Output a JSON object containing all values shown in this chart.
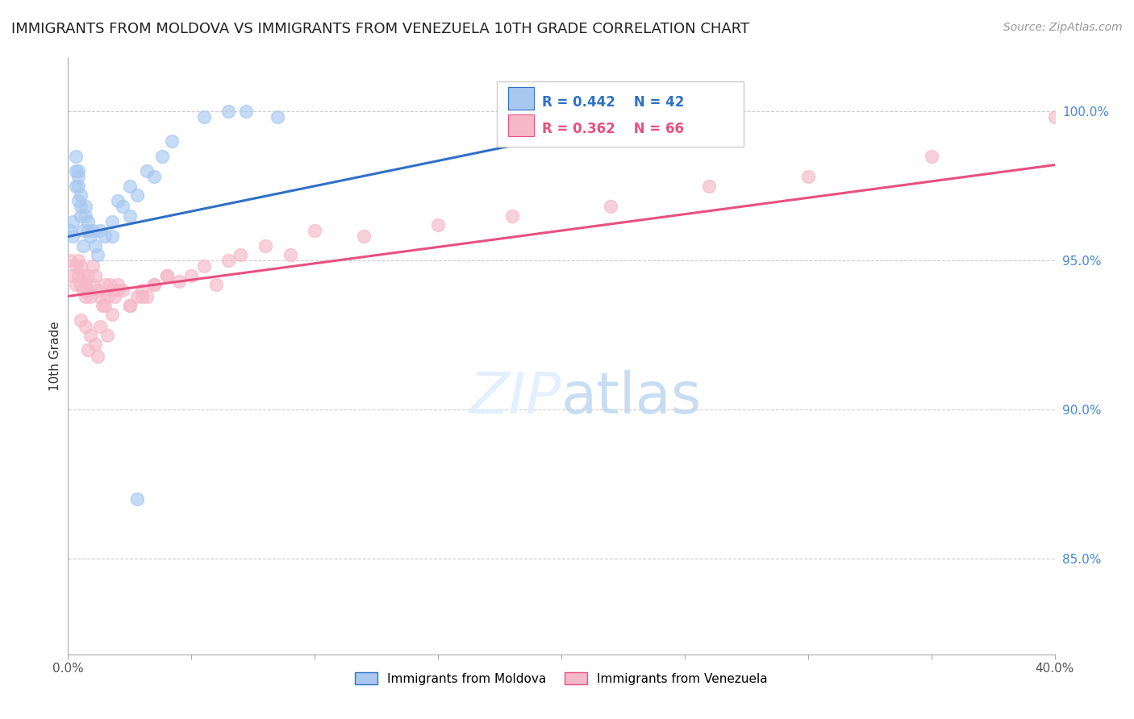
{
  "title": "IMMIGRANTS FROM MOLDOVA VS IMMIGRANTS FROM VENEZUELA 10TH GRADE CORRELATION CHART",
  "source": "Source: ZipAtlas.com",
  "ylabel": "10th Grade",
  "moldova_R": 0.442,
  "moldova_N": 42,
  "venezuela_R": 0.362,
  "venezuela_N": 66,
  "moldova_color": "#a8c8f0",
  "venezuela_color": "#f5b8c8",
  "moldova_edge_color": "#a8c8f0",
  "venezuela_edge_color": "#f5b8c8",
  "moldova_line_color": "#3070c8",
  "venezuela_line_color": "#e85080",
  "background_color": "#ffffff",
  "xlim": [
    0.0,
    0.4
  ],
  "ylim": [
    0.818,
    1.018
  ],
  "right_ytick_positions": [
    1.0,
    0.95,
    0.9,
    0.85
  ],
  "right_ytick_labels": [
    "100.0%",
    "95.0%",
    "90.0%",
    "85.0%"
  ],
  "moldova_x": [
    0.001,
    0.002,
    0.002,
    0.003,
    0.003,
    0.003,
    0.004,
    0.004,
    0.004,
    0.004,
    0.005,
    0.005,
    0.005,
    0.006,
    0.006,
    0.007,
    0.007,
    0.008,
    0.008,
    0.009,
    0.01,
    0.011,
    0.012,
    0.013,
    0.015,
    0.018,
    0.02,
    0.022,
    0.025,
    0.028,
    0.032,
    0.038,
    0.042,
    0.055,
    0.065,
    0.072,
    0.085,
    0.025,
    0.035,
    0.018,
    0.028,
    0.26
  ],
  "moldova_y": [
    0.96,
    0.958,
    0.963,
    0.975,
    0.98,
    0.985,
    0.97,
    0.975,
    0.978,
    0.98,
    0.968,
    0.972,
    0.965,
    0.96,
    0.955,
    0.968,
    0.965,
    0.96,
    0.963,
    0.958,
    0.96,
    0.955,
    0.952,
    0.96,
    0.958,
    0.963,
    0.97,
    0.968,
    0.975,
    0.972,
    0.98,
    0.985,
    0.99,
    0.998,
    1.0,
    1.0,
    0.998,
    0.965,
    0.978,
    0.958,
    0.87,
    1.0
  ],
  "venezuela_x": [
    0.001,
    0.002,
    0.003,
    0.003,
    0.004,
    0.004,
    0.005,
    0.005,
    0.006,
    0.006,
    0.007,
    0.007,
    0.008,
    0.008,
    0.009,
    0.01,
    0.01,
    0.011,
    0.012,
    0.013,
    0.014,
    0.015,
    0.016,
    0.017,
    0.018,
    0.019,
    0.02,
    0.022,
    0.025,
    0.028,
    0.03,
    0.032,
    0.035,
    0.04,
    0.045,
    0.05,
    0.055,
    0.06,
    0.065,
    0.07,
    0.08,
    0.09,
    0.1,
    0.12,
    0.15,
    0.18,
    0.22,
    0.26,
    0.3,
    0.35,
    0.4,
    0.005,
    0.007,
    0.009,
    0.011,
    0.013,
    0.015,
    0.018,
    0.02,
    0.025,
    0.03,
    0.035,
    0.04,
    0.008,
    0.012,
    0.016
  ],
  "venezuela_y": [
    0.95,
    0.945,
    0.948,
    0.942,
    0.945,
    0.95,
    0.948,
    0.942,
    0.945,
    0.94,
    0.938,
    0.942,
    0.94,
    0.945,
    0.938,
    0.942,
    0.948,
    0.945,
    0.94,
    0.938,
    0.935,
    0.942,
    0.938,
    0.942,
    0.94,
    0.938,
    0.942,
    0.94,
    0.935,
    0.938,
    0.94,
    0.938,
    0.942,
    0.945,
    0.943,
    0.945,
    0.948,
    0.942,
    0.95,
    0.952,
    0.955,
    0.952,
    0.96,
    0.958,
    0.962,
    0.965,
    0.968,
    0.975,
    0.978,
    0.985,
    0.998,
    0.93,
    0.928,
    0.925,
    0.922,
    0.928,
    0.935,
    0.932,
    0.94,
    0.935,
    0.938,
    0.942,
    0.945,
    0.92,
    0.918,
    0.925
  ],
  "mol_line_x0": 0.0,
  "mol_line_y0": 0.958,
  "mol_line_x1": 0.26,
  "mol_line_y1": 1.002,
  "ven_line_x0": 0.0,
  "ven_line_y0": 0.938,
  "ven_line_x1": 0.4,
  "ven_line_y1": 0.982
}
